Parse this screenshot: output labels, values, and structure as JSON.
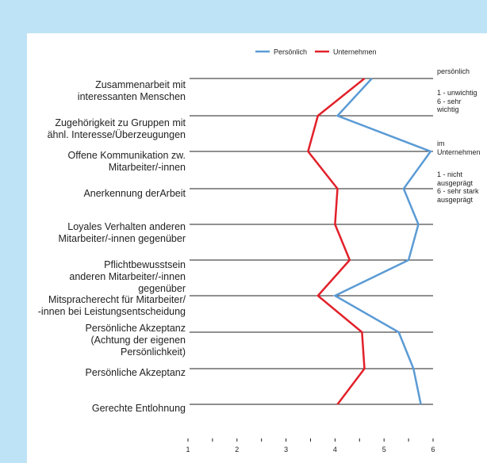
{
  "colors": {
    "frame": "#bfe3f6",
    "panel": "#ffffff",
    "grid": "#222222",
    "persoenlich": "#5b9bd5",
    "unternehmen": "#e2202a"
  },
  "chart_data": {
    "type": "line",
    "orientation": "horizontal",
    "categories": [
      "Zusammenarbeit mit\ninteressanten Menschen",
      "Zugehörigkeit zu Gruppen mit\nähnl. Interesse/Überzeugungen",
      "Offene Kommunikation zw.\nMitarbeiter/-innen",
      "Anerkennung derArbeit",
      "Loyales Verhalten anderen\nMitarbeiter/-innen gegenüber",
      "Pflichtbewusstsein\nanderen Mitarbeiter/-innen\ngegenüber",
      "Mitspracherecht für Mitarbeiter/\n-innen bei Leistungsentscheidung",
      "Persönliche Akzeptanz\n(Achtung der eigenen\nPersönlichkeit)",
      "Persönliche Akzeptanz",
      "Gerechte Entlohnung"
    ],
    "series": [
      {
        "name": "Persönlich",
        "values": [
          4.75,
          4.05,
          5.95,
          5.4,
          5.7,
          5.5,
          4.0,
          5.3,
          5.6,
          5.75
        ]
      },
      {
        "name": "Unternehmen",
        "values": [
          4.6,
          3.65,
          3.45,
          4.05,
          4.0,
          4.3,
          3.65,
          4.55,
          4.6,
          4.05
        ]
      }
    ],
    "x_ticks": [
      "1",
      "2",
      "3",
      "4",
      "5",
      "6"
    ],
    "xlim": [
      1,
      6
    ],
    "legend": "top-center",
    "grid": "horizontal lines per category"
  },
  "side_notes": [
    "persönlich",
    "1 - unwichtig\n6 - sehr\nwichtig",
    "im\nUnternehmen",
    "1 - nicht\nausgeprägt\n6 - sehr stark\nausgeprägt"
  ]
}
